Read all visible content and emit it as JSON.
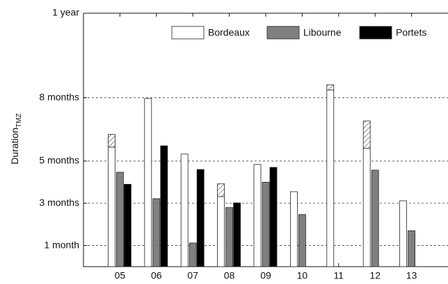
{
  "chart_data": {
    "type": "bar",
    "y_label": "Duration",
    "y_label_sub": "TMZ",
    "categories": [
      "05",
      "06",
      "07",
      "08",
      "09",
      "10",
      "11",
      "12",
      "13"
    ],
    "series": [
      {
        "name": "Bordeaux",
        "color": "#ffffff",
        "values": [
          5.66,
          7.96,
          5.33,
          3.32,
          4.84,
          3.55,
          8.36,
          5.6,
          3.12
        ],
        "hatched_values": [
          0.6,
          null,
          null,
          0.6,
          null,
          null,
          0.25,
          1.3,
          null
        ]
      },
      {
        "name": "Libourne",
        "color": "#808080",
        "values": [
          4.47,
          3.22,
          1.12,
          2.8,
          4.0,
          2.47,
          null,
          4.57,
          1.7
        ]
      },
      {
        "name": "Portets",
        "color": "#000000",
        "values": [
          3.9,
          5.72,
          4.6,
          3.02,
          4.7,
          null,
          null,
          null,
          null
        ]
      }
    ],
    "ylim": [
      0,
      12
    ],
    "yticks": [
      {
        "value": 1,
        "label": "1 month"
      },
      {
        "value": 3,
        "label": "3 months"
      },
      {
        "value": 5,
        "label": "5 months"
      },
      {
        "value": 8,
        "label": "8 months"
      },
      {
        "value": 12,
        "label": "1 year"
      }
    ],
    "grid": true,
    "legend": "upper right"
  }
}
